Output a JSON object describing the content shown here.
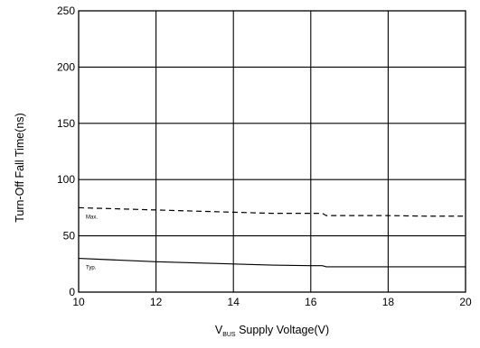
{
  "chart_data": {
    "type": "line",
    "title": "",
    "xlabel": {
      "prefix": "V",
      "subscript": "BUS",
      "suffix": " Supply Voltage(V)"
    },
    "ylabel": "Turn-Off Fall Time(ns)",
    "xlim": [
      10,
      20
    ],
    "ylim": [
      0,
      250
    ],
    "xticks": [
      10,
      12,
      14,
      16,
      18,
      20
    ],
    "yticks": [
      0,
      50,
      100,
      150,
      200,
      250
    ],
    "xtick_labels": [
      "10",
      "12",
      "14",
      "16",
      "18",
      "20"
    ],
    "ytick_labels": [
      "0",
      "50",
      "100",
      "150",
      "200",
      "250"
    ],
    "grid": true,
    "series": [
      {
        "name": "Max.",
        "style": "dashed",
        "color": "#000000",
        "x": [
          10,
          11,
          12,
          13,
          14,
          15,
          16,
          16.3,
          16.4,
          17,
          18,
          19,
          20
        ],
        "y": [
          75,
          74,
          73,
          72,
          71,
          70,
          70,
          70,
          68,
          68,
          68,
          67.5,
          67.5
        ]
      },
      {
        "name": "Typ.",
        "style": "solid",
        "color": "#000000",
        "x": [
          10,
          11,
          12,
          13,
          14,
          15,
          16,
          16.3,
          16.4,
          17,
          18,
          19,
          20
        ],
        "y": [
          30,
          28.5,
          27,
          26,
          25,
          24,
          23.5,
          23.5,
          22.5,
          22.5,
          22.5,
          22.5,
          22.5
        ]
      }
    ]
  }
}
